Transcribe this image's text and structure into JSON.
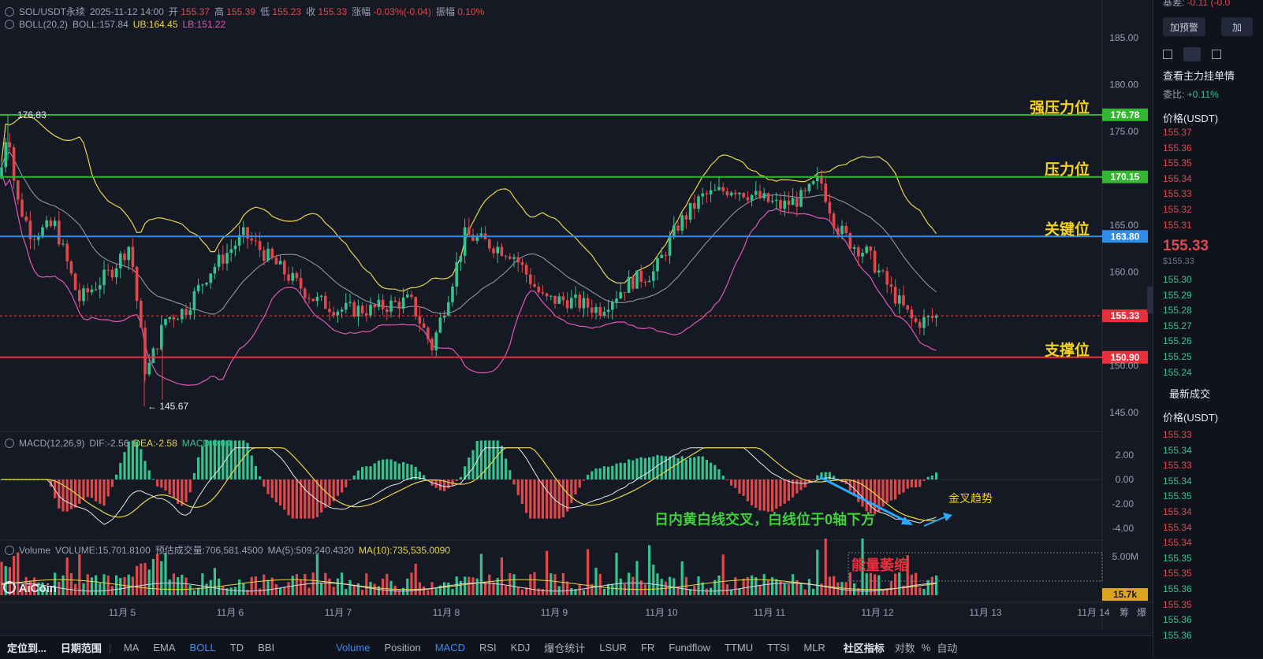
{
  "symbol_bar": {
    "symbol": "SOL/USDT永续",
    "datetime": "2025-11-12 14:00",
    "open_label": "开",
    "open": "155.37",
    "high_label": "高",
    "high": "155.39",
    "low_label": "低",
    "low": "155.23",
    "close_label": "收",
    "close": "155.33",
    "change_label": "涨幅",
    "change": "-0.03%(-0.04)",
    "amp_label": "振幅",
    "amp": "0.10%"
  },
  "boll": {
    "label": "BOLL(20,2)",
    "mid": "BOLL:157.84",
    "ub": "UB:164.45",
    "lb": "LB:151.22"
  },
  "macd": {
    "label": "MACD(12,26,9)",
    "dif": "DIF:-2.56",
    "dea": "DEA:-2.58",
    "macd": "MACD:0.04"
  },
  "volume": {
    "label": "Volume",
    "value": "VOLUME:15,701.8100",
    "est_label": "预估成交量:",
    "est": "706,581.4500",
    "ma5": "MA(5):509,240.4320",
    "ma10": "MA(10):735,535.0090"
  },
  "price_axis": [
    "185.00",
    "180.00",
    "175.00",
    "165.00",
    "160.00",
    "150.00",
    "145.00"
  ],
  "macd_axis": [
    "2.00",
    "0.00",
    "-2.00",
    "-4.00"
  ],
  "volume_axis": "5.00M",
  "date_axis": [
    "11月 5",
    "11月 6",
    "11月 7",
    "11月 8",
    "11月 9",
    "11月 10",
    "11月 11",
    "11月 12",
    "11月 13",
    "11月 14"
  ],
  "date_axis_extras": [
    "筹",
    "爆"
  ],
  "levels": [
    {
      "name": "强压力位",
      "price": "176.78",
      "color": "#33b733"
    },
    {
      "name": "压力位",
      "price": "170.15",
      "color": "#33b733"
    },
    {
      "name": "关键位",
      "price": "163.80",
      "color": "#2f8ce8"
    },
    {
      "name": "支撑位",
      "price": "150.90",
      "color": "#e8303a"
    }
  ],
  "current_price_tag": "155.33",
  "volume_tag": "15.7k",
  "annotations": {
    "high": "176.83",
    "low": "← 145.67",
    "cross_text": "日内黄白线交叉，白线位于0轴下方",
    "golden_cross": "金叉趋势",
    "volume_shrink": "能量萎缩"
  },
  "watermark": "AiCoin",
  "bottom_bar": {
    "left": [
      "定位到...",
      "日期范围"
    ],
    "main_indicators": [
      "MA",
      "EMA",
      "BOLL",
      "TD",
      "BBI"
    ],
    "sub_indicators": [
      "Volume",
      "Position",
      "MACD",
      "RSI",
      "KDJ",
      "爆仓统计",
      "LSUR",
      "FR",
      "Fundflow",
      "TTMU",
      "TTSI",
      "MLR"
    ],
    "right": [
      "社区指标",
      "对数",
      "%",
      "自动"
    ],
    "active": [
      "BOLL",
      "Volume",
      "MACD"
    ]
  },
  "sidebar": {
    "top_partial": "基差:",
    "top_partial_val": "-0.11 (-0.0",
    "btn1": "加预警",
    "btn2": "加",
    "view_orders": "查看主力挂单情",
    "ratio_label": "委比:",
    "ratio_value": "+0.11%",
    "price_header": "价格(USDT)",
    "asks": [
      "155.37",
      "155.36",
      "155.35",
      "155.34",
      "155.33",
      "155.32",
      "155.31"
    ],
    "last_price": "155.33",
    "last_price_usd": "$155.33",
    "bids": [
      "155.30",
      "155.29",
      "155.28",
      "155.27",
      "155.26",
      "155.25",
      "155.24"
    ],
    "latest_trades_title": "最新成交",
    "trades_header": "价格(USDT)",
    "trades": [
      {
        "p": "155.33",
        "side": "sell"
      },
      {
        "p": "155.34",
        "side": "buy"
      },
      {
        "p": "155.33",
        "side": "sell"
      },
      {
        "p": "155.34",
        "side": "buy"
      },
      {
        "p": "155.35",
        "side": "buy"
      },
      {
        "p": "155.34",
        "side": "sell"
      },
      {
        "p": "155.34",
        "side": "sell"
      },
      {
        "p": "155.34",
        "side": "sell"
      },
      {
        "p": "155.35",
        "side": "buy"
      },
      {
        "p": "155.35",
        "side": "sell"
      },
      {
        "p": "155.36",
        "side": "buy"
      },
      {
        "p": "155.35",
        "side": "sell"
      },
      {
        "p": "155.36",
        "side": "buy"
      },
      {
        "p": "155.36",
        "side": "buy"
      }
    ]
  },
  "colors": {
    "up": "#34c38f",
    "down": "#e0484b",
    "boll_mid": "#9aa0b0",
    "boll_ub": "#e8d648",
    "boll_lb": "#e056b8",
    "dif": "#e8e8e8",
    "dea": "#e8d648",
    "accent": "#3a8cf2"
  }
}
